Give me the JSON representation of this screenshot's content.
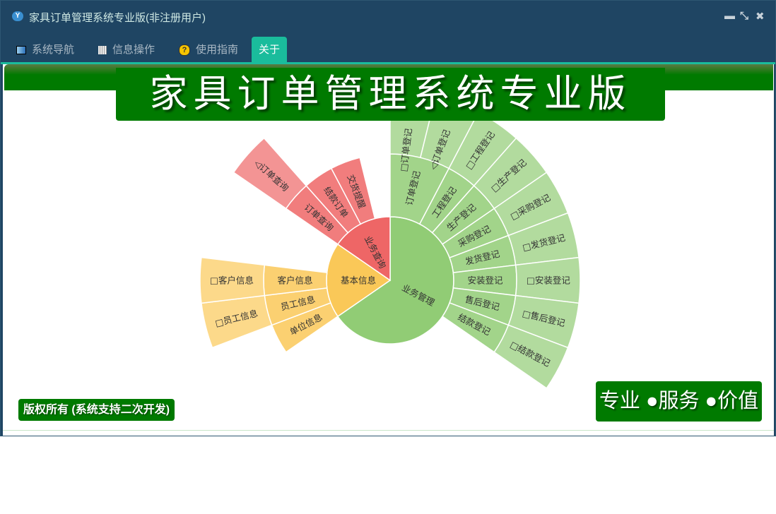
{
  "window": {
    "title": "家具订单管理系统专业版(非注册用户)",
    "controls": {
      "minimize": "▬",
      "restore": "⤡",
      "close": "✖"
    }
  },
  "tabs": [
    {
      "label": "系统导航",
      "icon": "monitor-icon",
      "active": false
    },
    {
      "label": "信息操作",
      "icon": "grid-icon",
      "active": false
    },
    {
      "label": "使用指南",
      "icon": "help-icon",
      "active": false
    },
    {
      "label": "关于",
      "active": true
    }
  ],
  "banner": {
    "title": "家具订单管理系统专业版"
  },
  "footer": {
    "copyright": "版权所有 (系统支持二次开发)",
    "slogan": "专业 ●服务 ●价值"
  },
  "colors": {
    "accent": "#1abc9c",
    "brand_green": "#007a00",
    "titlebar": "#1f4563"
  },
  "chart_data": {
    "type": "sunburst",
    "data": [
      {
        "name": "业务管理",
        "value": 17,
        "color": "#91cc75",
        "children": [
          {
            "name": "订单登记",
            "value": 2,
            "children": [
              {
                "name": "□订单登记",
                "value": 1
              },
              {
                "name": "◁订单登记",
                "value": 1
              }
            ]
          },
          {
            "name": "工程登记",
            "value": 1,
            "children": [
              {
                "name": "□工程登记",
                "value": 1
              }
            ]
          },
          {
            "name": "生产登记",
            "value": 1,
            "children": [
              {
                "name": "□生产登记",
                "value": 1
              }
            ]
          },
          {
            "name": "采购登记",
            "value": 1,
            "children": [
              {
                "name": "□采购登记",
                "value": 1
              }
            ]
          },
          {
            "name": "发货登记",
            "value": 1,
            "children": [
              {
                "name": "□发货登记",
                "value": 1
              }
            ]
          },
          {
            "name": "安装登记",
            "value": 1,
            "children": [
              {
                "name": "□安装登记",
                "value": 1
              }
            ]
          },
          {
            "name": "售后登记",
            "value": 1,
            "children": [
              {
                "name": "□售后登记",
                "value": 1
              }
            ]
          },
          {
            "name": "结款登记",
            "value": 1,
            "children": [
              {
                "name": "□结款登记",
                "value": 1
              }
            ]
          }
        ]
      },
      {
        "name": "基本信息",
        "value": 5,
        "color": "#fac858",
        "children": [
          {
            "name": "单位信息",
            "value": 1
          },
          {
            "name": "员工信息",
            "value": 1,
            "children": [
              {
                "name": "□员工信息",
                "value": 1
              }
            ]
          },
          {
            "name": "客户信息",
            "value": 1,
            "children": [
              {
                "name": "□客户信息",
                "value": 1
              }
            ]
          }
        ]
      },
      {
        "name": "业务查询",
        "value": 4,
        "color": "#ee6666",
        "children": [
          {
            "name": "订单查询",
            "value": 1,
            "children": [
              {
                "name": "◁订单查询",
                "value": 1
              }
            ]
          },
          {
            "name": "结款订单",
            "value": 1
          },
          {
            "name": "交货提醒",
            "value": 1
          }
        ]
      }
    ]
  }
}
